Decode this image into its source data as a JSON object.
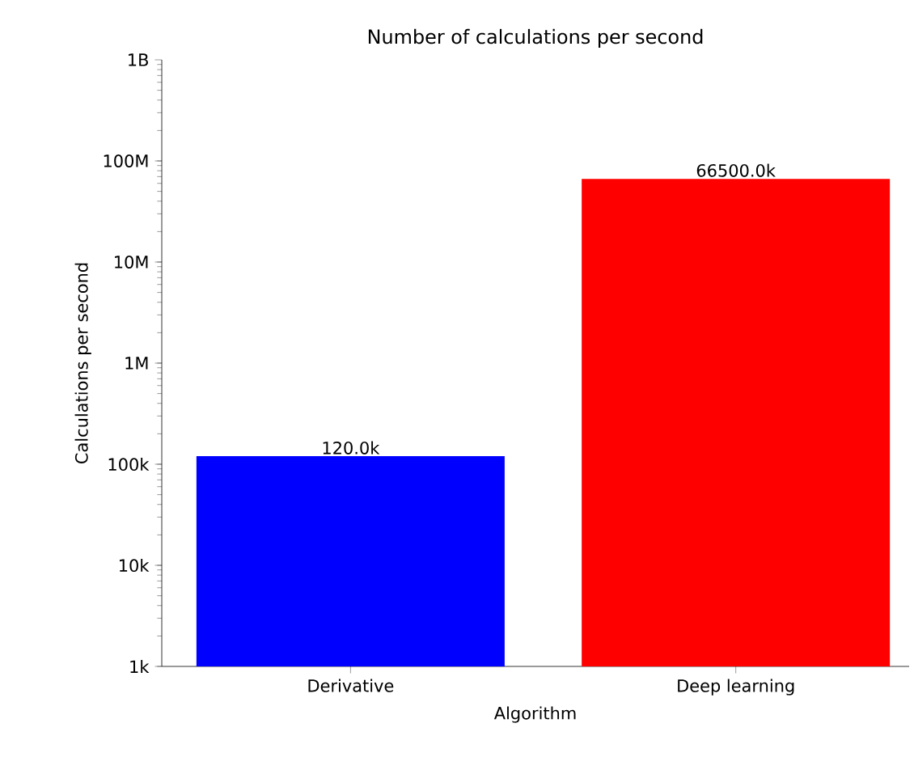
{
  "chart_data": {
    "type": "bar",
    "title": "Number of calculations per second",
    "xlabel": "Algorithm",
    "ylabel": "Calculations per second",
    "categories": [
      "Derivative",
      "Deep learning"
    ],
    "values": [
      120000,
      66500000
    ],
    "colors": [
      "#0000ff",
      "#ff0000"
    ],
    "value_labels": [
      "120.0k",
      "66500.0k"
    ],
    "log": "y",
    "ylim": [
      1000,
      1000000000
    ],
    "yticks": [
      {
        "value": 1000,
        "label": "1k"
      },
      {
        "value": 10000,
        "label": "10k"
      },
      {
        "value": 100000,
        "label": "100k"
      },
      {
        "value": 1000000,
        "label": "1M"
      },
      {
        "value": 10000000,
        "label": "10M"
      },
      {
        "value": 100000000,
        "label": "100M"
      },
      {
        "value": 1000000000,
        "label": "1B"
      }
    ],
    "grid": false
  }
}
